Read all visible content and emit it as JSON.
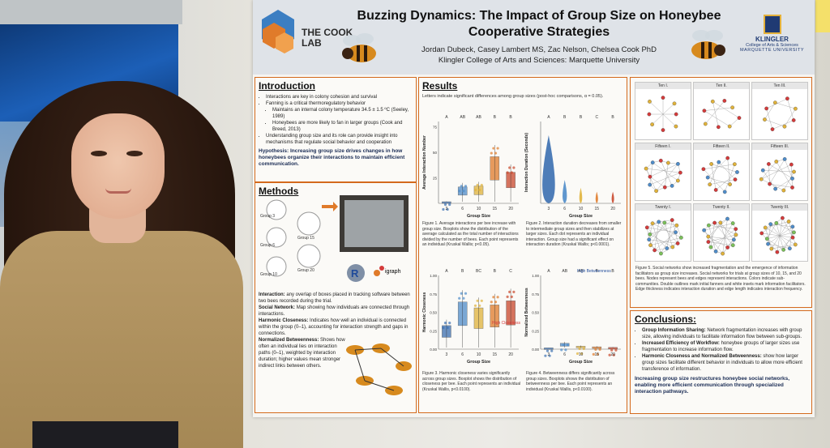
{
  "poster": {
    "lab_name": "THE COOK LAB",
    "title": "Buzzing Dynamics: The Impact of Group Size on Honeybee Cooperative Strategies",
    "authors": "Jordan Dubeck, Casey Lambert MS, Zac Nelson, Chelsea Cook PhD",
    "affiliation": "Klingler College of Arts and Sciences: Marquette University",
    "university_logo": {
      "line1": "KLINGLER",
      "line2": "College of Arts & Sciences",
      "line3": "MARQUETTE UNIVERSITY"
    }
  },
  "introduction": {
    "heading": "Introduction",
    "bullets": [
      "Interactions are key in colony cohesion and survival",
      "Fanning is a critical thermoregulatory behavior",
      "Maintains an internal colony temperature 34.5 ± 1.5 ºC (Seeley, 1989)",
      "Honeybees are more likely to fan in larger groups (Cook and Breed, 2013)",
      "Understanding group size and its role can provide insight into mechanisms that regulate social behavior and cooperation"
    ],
    "hypothesis": "Hypothesis: Increasing group size drives changes in how honeybees organize their interactions to maintain efficient communication."
  },
  "methods": {
    "heading": "Methods",
    "groups": [
      "Group 3",
      "Group 6",
      "Group 10",
      "Group 15",
      "Group 20"
    ],
    "software": "igraph",
    "definitions": [
      {
        "term": "Interaction:",
        "text": "any overlap of boxes placed in tracking software between two bees recorded during the trial."
      },
      {
        "term": "Social Network:",
        "text": "Map showing how individuals are connected through interactions."
      },
      {
        "term": "Harmonic Closeness:",
        "text": "Indicates how well an individual is connected within the group (0–1), accounting for interaction strength and gaps in connections."
      },
      {
        "term": "Normalized Betweenness:",
        "text": "Shows how often an individual lies on interaction paths (0–1), weighted by interaction duration; higher values mean stronger indirect links between others."
      }
    ]
  },
  "results": {
    "heading": "Results",
    "note": "Letters indicate significant differences among group sizes (post-hoc comparisons, α = 0.05).",
    "fig1_caption": "Figure 1. Average interactions per bee increase with group size. Boxplots show the distribution of the average calculated as the total number of interactions divided by the number of bees. Each point represents an individual (Kruskal Wallis; p<0.05).",
    "fig2_caption": "Figure 2. Interaction duration decreases from smaller to intermediate group sizes and then stabilizes at larger sizes. Each dot represents an individual interaction. Group size had a significant effect on interaction duration (Kruskal Wallis; p<0.0001).",
    "fig3_caption": "Figure 3. Harmonic closeness varies significantly across group sizes. Boxplot shows the distribution of closeness per bee. Each point represents an individual (Kruskal Wallis, p<0.0100).",
    "fig4_caption": "Figure 4. Betweenness differs significantly across group sizes. Boxplots shows the distribution of betweenness per bee. Each point represents an individual (Kruskal Wallis, p<0.0100).",
    "fig3_annotation": "High Closeness",
    "fig4_annotation": "High Betweenness"
  },
  "chart_data": [
    {
      "type": "bar",
      "categories": [
        "3",
        "6",
        "10",
        "15",
        "20"
      ],
      "values": [
        2,
        20,
        21,
        57,
        38
      ],
      "letters": [
        "A",
        "AB",
        "AB",
        "B",
        "B"
      ],
      "xlabel": "Group Size",
      "ylabel": "Average Interaction Number",
      "ylim": [
        0,
        80
      ],
      "yticks": [
        "25",
        "50",
        "75"
      ]
    },
    {
      "type": "area",
      "categories": [
        "3",
        "6",
        "10",
        "15",
        "20"
      ],
      "values": [
        35,
        12,
        8,
        6,
        6
      ],
      "letters": [
        "A",
        "B",
        "B",
        "C",
        "B"
      ],
      "xlabel": "Group Size",
      "ylabel": "Interaction Duration (Seconds)"
    },
    {
      "type": "bar",
      "categories": [
        "3",
        "6",
        "10",
        "15",
        "20"
      ],
      "values": [
        0.4,
        0.8,
        0.7,
        0.75,
        0.82
      ],
      "letters": [
        "A",
        "B",
        "BC",
        "B",
        "C"
      ],
      "xlabel": "Group Size",
      "ylabel": "Harmonic Closeness",
      "ylim": [
        0,
        1
      ],
      "yticks": [
        "0.00",
        "0.25",
        "0.50",
        "0.75",
        "1.00"
      ]
    },
    {
      "type": "bar",
      "categories": [
        "3",
        "6",
        "10",
        "15",
        "20"
      ],
      "values": [
        0.02,
        0.1,
        0.05,
        0.04,
        0.03
      ],
      "letters": [
        "A",
        "AB",
        "AB",
        "B",
        "B"
      ],
      "xlabel": "Group Size",
      "ylabel": "Normalized Betweenness",
      "ylim": [
        0,
        1
      ],
      "yticks": [
        "0.00",
        "0.25",
        "0.50",
        "0.75",
        "1.00"
      ]
    }
  ],
  "networks": {
    "labels": [
      "Ten I.",
      "Ten II.",
      "Ten III.",
      "Fifteen I.",
      "Fifteen II.",
      "Fifteen III.",
      "Twenty I.",
      "Twenty II.",
      "Twenty III."
    ],
    "caption": "Figure 5. Social networks show increased fragmentation and the emergence of information facilitators as group size increases. Social networks for trials at group sizes of 10, 15, and 20 bees. Nodes represent bees and edges represent interactions. Colors indicate sub-communities. Double outlines mark initial fanners and white insets mark information facilitators. Edge thickness indicates interaction duration and edge length indicates interaction frequency."
  },
  "conclusions": {
    "heading": "Conclusions:",
    "items": [
      {
        "term": "Group Information Sharing:",
        "text": "Network fragmentation increases with group size, allowing individuals to facilitate information flow between sub-groups."
      },
      {
        "term": "Increased Efficiency of Workflow:",
        "text": "honeybee groups of larger sizes use fragmentation to increase information flow."
      },
      {
        "term": "Harmonic Closeness and Normalized Betweenness:",
        "text": "show how larger group sizes facilitate different behavior in individuals to allow more efficient transference of information."
      }
    ],
    "summary": "Increasing group size restructures honeybee social networks, enabling more efficient communication through specialized interaction pathways."
  },
  "colors": {
    "panel_border": "#d46a1d",
    "accent_orange": "#e07b2a",
    "accent_blue": "#4f8cc9"
  }
}
